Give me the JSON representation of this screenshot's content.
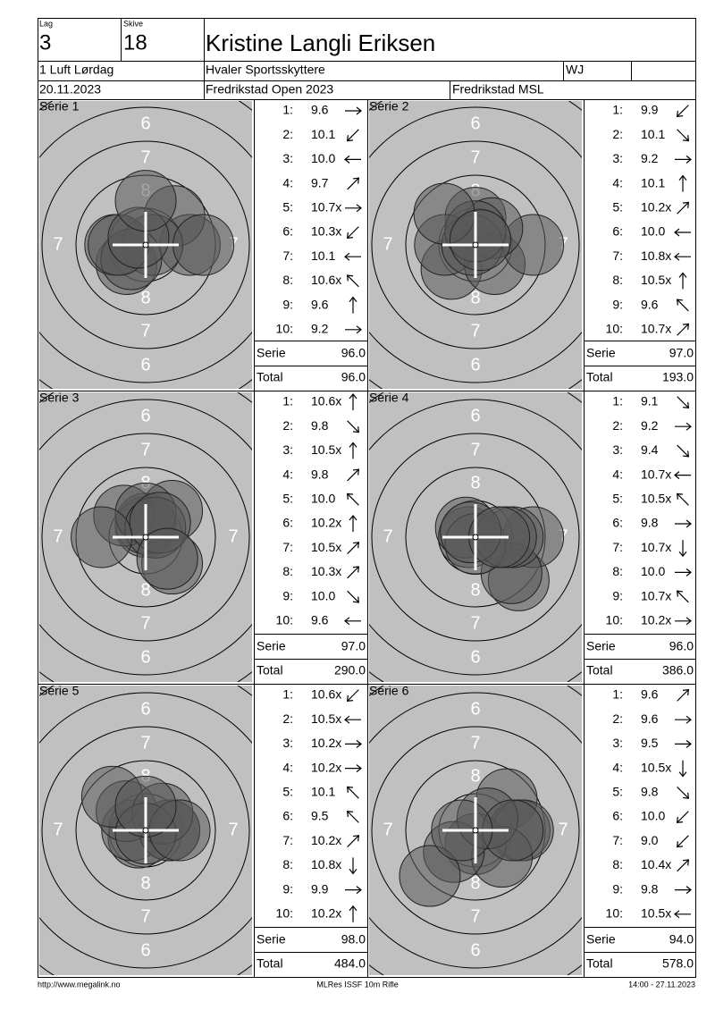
{
  "header": {
    "lag_label": "Lag",
    "lag": "3",
    "skive_label": "Skive",
    "skive": "18",
    "name": "Kristine Langli Eriksen",
    "class": "1 Luft Lørdag",
    "club": "Hvaler Sportsskyttere",
    "category": "WJ",
    "date": "20.11.2023",
    "competition": "Fredrikstad Open 2023",
    "range": "Fredrikstad MSL"
  },
  "target": {
    "ring_labels": [
      "6",
      "7",
      "8"
    ]
  },
  "series_label": "Serie",
  "total_label": "Total",
  "series": [
    {
      "title": "Serie 1",
      "serie": "96.0",
      "total": "96.0",
      "shots": [
        {
          "no": "1:",
          "score": "9.6",
          "direction": "E"
        },
        {
          "no": "2:",
          "score": "10.1",
          "direction": "SW"
        },
        {
          "no": "3:",
          "score": "10.0",
          "direction": "W"
        },
        {
          "no": "4:",
          "score": "9.7",
          "direction": "NE"
        },
        {
          "no": "5:",
          "score": "10.7x",
          "direction": "E"
        },
        {
          "no": "6:",
          "score": "10.3x",
          "direction": "SW"
        },
        {
          "no": "7:",
          "score": "10.1",
          "direction": "W"
        },
        {
          "no": "8:",
          "score": "10.6x",
          "direction": "NW"
        },
        {
          "no": "9:",
          "score": "9.6",
          "direction": "N"
        },
        {
          "no": "10:",
          "score": "9.2",
          "direction": "E"
        }
      ]
    },
    {
      "title": "Serie 2",
      "serie": "97.0",
      "total": "193.0",
      "shots": [
        {
          "no": "1:",
          "score": "9.9",
          "direction": "SW"
        },
        {
          "no": "2:",
          "score": "10.1",
          "direction": "SE"
        },
        {
          "no": "3:",
          "score": "9.2",
          "direction": "E"
        },
        {
          "no": "4:",
          "score": "10.1",
          "direction": "N"
        },
        {
          "no": "5:",
          "score": "10.2x",
          "direction": "NE"
        },
        {
          "no": "6:",
          "score": "10.0",
          "direction": "W"
        },
        {
          "no": "7:",
          "score": "10.8x",
          "direction": "W"
        },
        {
          "no": "8:",
          "score": "10.5x",
          "direction": "N"
        },
        {
          "no": "9:",
          "score": "9.6",
          "direction": "NW"
        },
        {
          "no": "10:",
          "score": "10.7x",
          "direction": "NE"
        }
      ]
    },
    {
      "title": "Serie 3",
      "serie": "97.0",
      "total": "290.0",
      "shots": [
        {
          "no": "1:",
          "score": "10.6x",
          "direction": "N"
        },
        {
          "no": "2:",
          "score": "9.8",
          "direction": "SE"
        },
        {
          "no": "3:",
          "score": "10.5x",
          "direction": "N"
        },
        {
          "no": "4:",
          "score": "9.8",
          "direction": "NE"
        },
        {
          "no": "5:",
          "score": "10.0",
          "direction": "NW"
        },
        {
          "no": "6:",
          "score": "10.2x",
          "direction": "N"
        },
        {
          "no": "7:",
          "score": "10.5x",
          "direction": "NE"
        },
        {
          "no": "8:",
          "score": "10.3x",
          "direction": "NE"
        },
        {
          "no": "9:",
          "score": "10.0",
          "direction": "SE"
        },
        {
          "no": "10:",
          "score": "9.6",
          "direction": "W"
        }
      ]
    },
    {
      "title": "Serie 4",
      "serie": "96.0",
      "total": "386.0",
      "shots": [
        {
          "no": "1:",
          "score": "9.1",
          "direction": "SE"
        },
        {
          "no": "2:",
          "score": "9.2",
          "direction": "E"
        },
        {
          "no": "3:",
          "score": "9.4",
          "direction": "SE"
        },
        {
          "no": "4:",
          "score": "10.7x",
          "direction": "W"
        },
        {
          "no": "5:",
          "score": "10.5x",
          "direction": "NW"
        },
        {
          "no": "6:",
          "score": "9.8",
          "direction": "E"
        },
        {
          "no": "7:",
          "score": "10.7x",
          "direction": "S"
        },
        {
          "no": "8:",
          "score": "10.0",
          "direction": "E"
        },
        {
          "no": "9:",
          "score": "10.7x",
          "direction": "NW"
        },
        {
          "no": "10:",
          "score": "10.2x",
          "direction": "E"
        }
      ]
    },
    {
      "title": "Serie 5",
      "serie": "98.0",
      "total": "484.0",
      "shots": [
        {
          "no": "1:",
          "score": "10.6x",
          "direction": "SW"
        },
        {
          "no": "2:",
          "score": "10.5x",
          "direction": "W"
        },
        {
          "no": "3:",
          "score": "10.2x",
          "direction": "E"
        },
        {
          "no": "4:",
          "score": "10.2x",
          "direction": "E"
        },
        {
          "no": "5:",
          "score": "10.1",
          "direction": "NW"
        },
        {
          "no": "6:",
          "score": "9.5",
          "direction": "NW"
        },
        {
          "no": "7:",
          "score": "10.2x",
          "direction": "NE"
        },
        {
          "no": "8:",
          "score": "10.8x",
          "direction": "S"
        },
        {
          "no": "9:",
          "score": "9.9",
          "direction": "E"
        },
        {
          "no": "10:",
          "score": "10.2x",
          "direction": "N"
        }
      ]
    },
    {
      "title": "Serie 6",
      "serie": "94.0",
      "total": "578.0",
      "shots": [
        {
          "no": "1:",
          "score": "9.6",
          "direction": "NE"
        },
        {
          "no": "2:",
          "score": "9.6",
          "direction": "E"
        },
        {
          "no": "3:",
          "score": "9.5",
          "direction": "E"
        },
        {
          "no": "4:",
          "score": "10.5x",
          "direction": "S"
        },
        {
          "no": "5:",
          "score": "9.8",
          "direction": "SE"
        },
        {
          "no": "6:",
          "score": "10.0",
          "direction": "SW"
        },
        {
          "no": "7:",
          "score": "9.0",
          "direction": "SW"
        },
        {
          "no": "8:",
          "score": "10.4x",
          "direction": "NE"
        },
        {
          "no": "9:",
          "score": "9.8",
          "direction": "E"
        },
        {
          "no": "10:",
          "score": "10.5x",
          "direction": "W"
        }
      ]
    }
  ],
  "footer": {
    "left": "http://www.megalink.no",
    "center": "MLRes ISSF 10m Rifle",
    "right": "14:00 - 27.11.2023"
  }
}
